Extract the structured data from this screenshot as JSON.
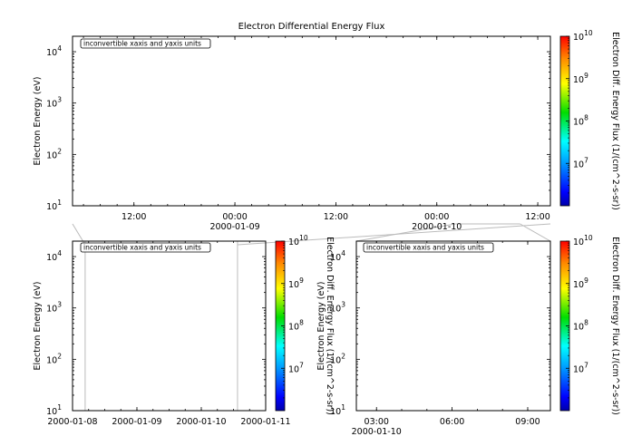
{
  "chart_data": [
    {
      "type": "heatmap",
      "panel": "top",
      "title": "Electron Differential Energy Flux",
      "ylabel": "Electron Energy (eV)",
      "y_scale": "log",
      "ylim": [
        10,
        20000
      ],
      "y_ticks": [
        {
          "base": "10",
          "exp": "1"
        },
        {
          "base": "10",
          "exp": "2"
        },
        {
          "base": "10",
          "exp": "3"
        },
        {
          "base": "10",
          "exp": "4"
        }
      ],
      "xlim": [
        "2000-01-08 04:42",
        "2000-01-10 13:30"
      ],
      "x_ticks": [
        {
          "time": "2000-01-08 12:00",
          "label": "12:00",
          "date": ""
        },
        {
          "time": "2000-01-09 00:00",
          "label": "00:00",
          "date": "2000-01-09"
        },
        {
          "time": "2000-01-09 12:00",
          "label": "12:00",
          "date": ""
        },
        {
          "time": "2000-01-10 00:00",
          "label": "00:00",
          "date": "2000-01-10"
        },
        {
          "time": "2000-01-10 12:00",
          "label": "12:00",
          "date": ""
        }
      ],
      "annotation": "inconvertible xaxis and yaxis units",
      "colorbar": {
        "label": "Electron Diff. Energy Flux (1/(cm^2-s-sr))",
        "scale": "log",
        "range": [
          1000000,
          10000000000
        ],
        "ticks": [
          {
            "base": "10",
            "exp": "7"
          },
          {
            "base": "10",
            "exp": "8"
          },
          {
            "base": "10",
            "exp": "9"
          },
          {
            "base": "10",
            "exp": "10"
          }
        ],
        "colormap": "rainbow"
      },
      "data": []
    },
    {
      "type": "heatmap",
      "panel": "bottom-left",
      "ylabel": "Electron Energy (eV)",
      "y_scale": "log",
      "ylim": [
        10,
        20000
      ],
      "y_ticks": [
        {
          "base": "10",
          "exp": "1"
        },
        {
          "base": "10",
          "exp": "2"
        },
        {
          "base": "10",
          "exp": "3"
        },
        {
          "base": "10",
          "exp": "4"
        }
      ],
      "xlim": [
        "2000-01-08",
        "2000-01-11"
      ],
      "x_ticks": [
        {
          "time": "2000-01-08",
          "label": "2000-01-08"
        },
        {
          "time": "2000-01-09",
          "label": "2000-01-09"
        },
        {
          "time": "2000-01-10",
          "label": "2000-01-10"
        },
        {
          "time": "2000-01-11",
          "label": "2000-01-11"
        }
      ],
      "annotation": "inconvertible xaxis and yaxis units",
      "colorbar": {
        "label": "Electron Diff. Energy Flux (1/(cm^2-s-sr))",
        "scale": "log",
        "range": [
          1000000,
          10000000000
        ],
        "ticks": [
          {
            "base": "10",
            "exp": "7"
          },
          {
            "base": "10",
            "exp": "8"
          },
          {
            "base": "10",
            "exp": "9"
          },
          {
            "base": "10",
            "exp": "10"
          }
        ],
        "colormap": "rainbow"
      },
      "data": []
    },
    {
      "type": "heatmap",
      "panel": "bottom-right",
      "ylabel": "Electron Energy (eV)",
      "y_scale": "log",
      "ylim": [
        10,
        20000
      ],
      "y_ticks": [
        {
          "base": "10",
          "exp": "1"
        },
        {
          "base": "10",
          "exp": "2"
        },
        {
          "base": "10",
          "exp": "3"
        },
        {
          "base": "10",
          "exp": "4"
        }
      ],
      "xlim": [
        "2000-01-10 02:12",
        "2000-01-10 09:54"
      ],
      "x_ticks": [
        {
          "time": "2000-01-10 03:00",
          "label": "03:00",
          "date": "2000-01-10"
        },
        {
          "time": "2000-01-10 06:00",
          "label": "06:00",
          "date": ""
        },
        {
          "time": "2000-01-10 09:00",
          "label": "09:00",
          "date": ""
        }
      ],
      "annotation": "inconvertible xaxis and yaxis units",
      "colorbar": {
        "label": "Electron Diff. Energy Flux (1/(cm^2-s-sr))",
        "scale": "log",
        "range": [
          1000000,
          10000000000
        ],
        "ticks": [
          {
            "base": "10",
            "exp": "7"
          },
          {
            "base": "10",
            "exp": "8"
          },
          {
            "base": "10",
            "exp": "9"
          },
          {
            "base": "10",
            "exp": "10"
          }
        ],
        "colormap": "rainbow"
      },
      "data": []
    }
  ]
}
